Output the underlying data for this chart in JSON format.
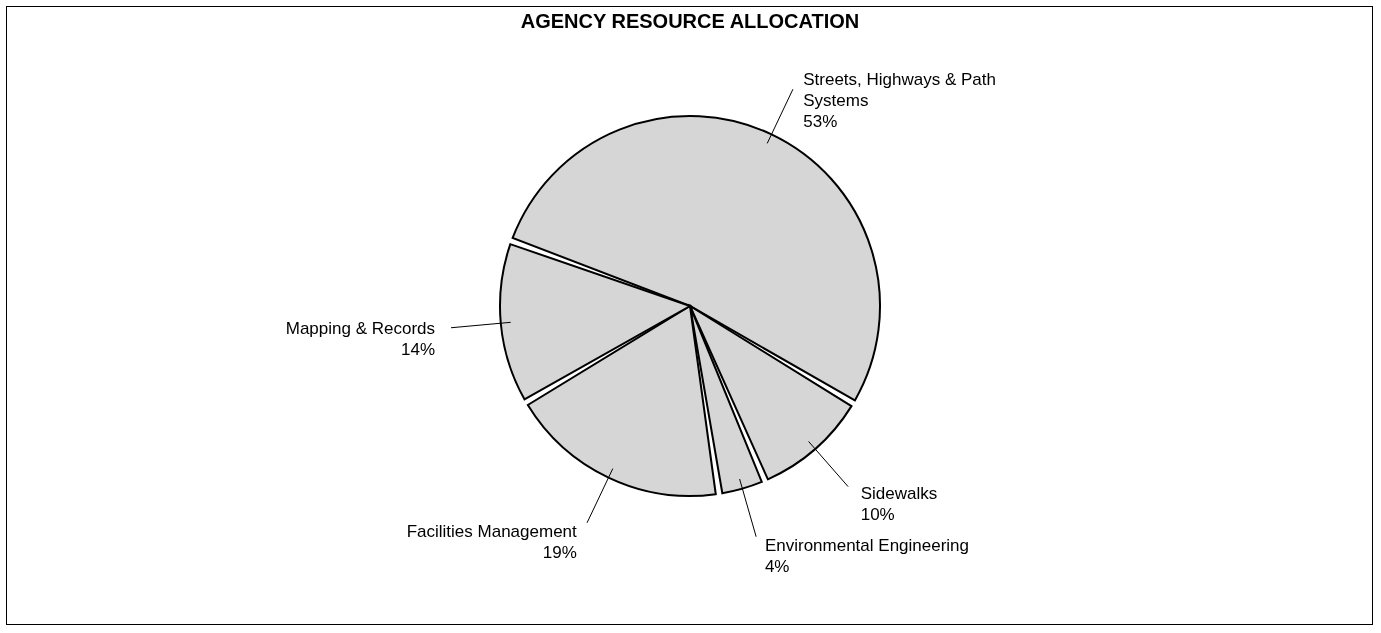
{
  "chart_data": {
    "type": "pie",
    "title": "AGENCY RESOURCE ALLOCATION",
    "categories": [
      "Streets, Highways & Path Systems",
      "Sidewalks",
      "Environmental Engineering",
      "Facilities Management",
      "Mapping & Records"
    ],
    "values": [
      53,
      10,
      4,
      19,
      14
    ],
    "value_labels": [
      "53%",
      "10%",
      "4%",
      "19%",
      "14%"
    ],
    "colors": [
      "#d6d6d6",
      "#d6d6d6",
      "#d6d6d6",
      "#d6d6d6",
      "#d6d6d6"
    ],
    "legend": false
  }
}
